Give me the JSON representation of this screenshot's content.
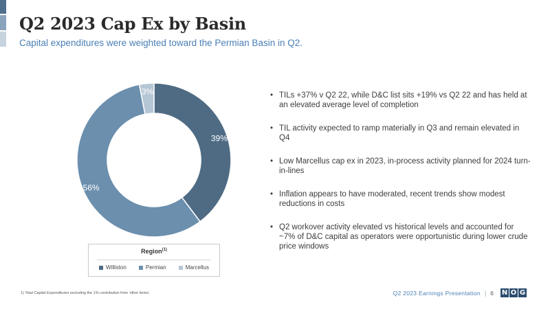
{
  "header": {
    "title": "Q2 2023 Cap Ex by Basin",
    "subtitle": "Capital expenditures were weighted toward the Permian Basin in Q2."
  },
  "chart_data": {
    "type": "pie",
    "variant": "donut",
    "categories": [
      "Williston",
      "Permian",
      "Marcellus"
    ],
    "values": [
      39,
      56,
      3
    ],
    "labels": [
      "39%",
      "56%",
      "3%"
    ],
    "colors": [
      "#4f6b84",
      "#6b8fad",
      "#b5c6d5"
    ],
    "legend": {
      "title": "Region",
      "title_superscript": "(1)",
      "placement": "bottom"
    }
  },
  "bullets": [
    "TILs +37% v Q2 22, while D&C list sits +19% vs Q2 22 and has held at an elevated average level of completion",
    "TIL activity expected to ramp materially in Q3 and remain elevated in Q4",
    "Low Marcellus cap ex in 2023, in-process activity planned for 2024 turn-in-lines",
    "Inflation appears to have moderated, recent trends show modest reductions in costs",
    "Q2 workover activity elevated vs historical levels and accounted for ~7% of D&C capital as operators were opportunistic during lower crude price windows"
  ],
  "footnote": "1) Total Capital Expenditures excluding the 1% contribution from 'other items'.",
  "footer": {
    "presentation_name": "Q2 2023 Earnings Presentation",
    "separator": "|",
    "page_number": "6",
    "logo_text": "NOG"
  }
}
